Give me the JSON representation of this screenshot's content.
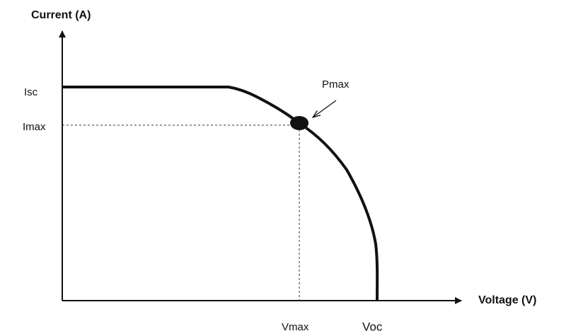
{
  "axes": {
    "y_label": "Current (A)",
    "x_label": "Voltage (V)"
  },
  "labels": {
    "isc": "Isc",
    "imax": "Imax",
    "vmax": "Vmax",
    "voc": "Voc",
    "pmax": "Pmax"
  }
}
